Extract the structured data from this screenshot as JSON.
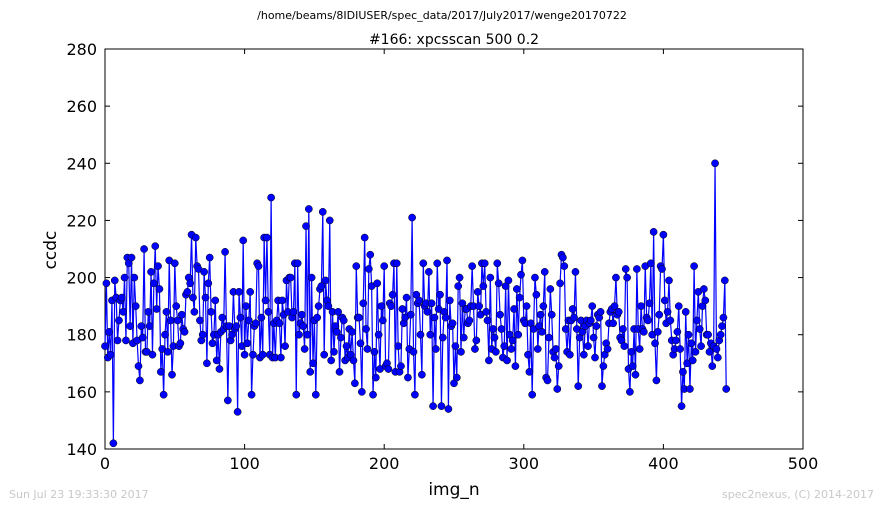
{
  "header": {
    "suptitle": "/home/beams/8IDIUSER/spec_data/2017/July2017/wenge20170722"
  },
  "footer": {
    "timestamp": "Sun Jul 23 19:33:30 2017",
    "credit": "spec2nexus, (C) 2014-2017"
  },
  "chart_data": {
    "type": "line",
    "title": "#166: xpcsscan 500 0.2",
    "xlabel": "img_n",
    "ylabel": "ccdc",
    "xlim": [
      0,
      500
    ],
    "ylim": [
      140,
      280
    ],
    "xticks": [
      "0",
      "100",
      "200",
      "300",
      "400",
      "500"
    ],
    "yticks": [
      "140",
      "160",
      "180",
      "200",
      "220",
      "240",
      "260",
      "280"
    ],
    "grid": false,
    "series": [
      {
        "color": "#0000ff",
        "marker": "circle",
        "values": [
          176,
          198,
          172,
          181,
          173,
          192,
          142,
          199,
          193,
          178,
          185,
          192,
          193,
          188,
          200,
          178,
          207,
          205,
          183,
          207,
          177,
          200,
          190,
          178,
          169,
          164,
          183,
          179,
          210,
          174,
          174,
          188,
          183,
          202,
          173,
          198,
          211,
          189,
          204,
          196,
          167,
          175,
          159,
          180,
          188,
          174,
          206,
          185,
          166,
          176,
          205,
          190,
          185,
          176,
          177,
          187,
          182,
          181,
          194,
          195,
          200,
          198,
          215,
          193,
          188,
          214,
          204,
          203,
          185,
          178,
          180,
          202,
          193,
          170,
          198,
          207,
          188,
          177,
          180,
          192,
          171,
          180,
          168,
          181,
          186,
          182,
          209,
          183,
          157,
          183,
          178,
          180,
          195,
          182,
          183,
          153,
          195,
          186,
          176,
          213,
          173,
          190,
          177,
          185,
          195,
          159,
          173,
          183,
          184,
          205,
          204,
          172,
          186,
          173,
          214,
          192,
          214,
          188,
          173,
          228,
          172,
          184,
          172,
          185,
          192,
          184,
          172,
          192,
          187,
          176,
          199,
          188,
          200,
          200,
          186,
          188,
          205,
          159,
          205,
          180,
          184,
          187,
          183,
          175,
          218,
          180,
          224,
          167,
          200,
          170,
          185,
          159,
          186,
          190,
          196,
          197,
          223,
          173,
          199,
          192,
          190,
          220,
          171,
          188,
          174,
          183,
          181,
          188,
          167,
          179,
          186,
          185,
          171,
          176,
          172,
          182,
          173,
          181,
          171,
          163,
          204,
          186,
          186,
          177,
          160,
          191,
          214,
          182,
          175,
          203,
          208,
          197,
          159,
          174,
          165,
          198,
          180,
          168,
          190,
          185,
          204,
          169,
          170,
          168,
          191,
          190,
          194,
          205,
          167,
          205,
          176,
          167,
          169,
          189,
          184,
          186,
          193,
          165,
          175,
          187,
          221,
          174,
          159,
          194,
          191,
          192,
          180,
          166,
          205,
          190,
          191,
          188,
          202,
          180,
          191,
          155,
          186,
          175,
          205,
          189,
          194,
          155,
          179,
          188,
          186,
          206,
          154,
          192,
          183,
          184,
          163,
          176,
          165,
          197,
          200,
          174,
          191,
          179,
          189,
          189,
          184,
          185,
          190,
          204,
          190,
          175,
          178,
          195,
          190,
          187,
          205,
          197,
          205,
          188,
          185,
          171,
          200,
          175,
          182,
          179,
          174,
          205,
          198,
          187,
          182,
          172,
          176,
          197,
          171,
          199,
          180,
          175,
          178,
          189,
          169,
          196,
          180,
          193,
          201,
          206,
          185,
          184,
          190,
          173,
          167,
          184,
          159,
          182,
          200,
          194,
          175,
          183,
          187,
          181,
          190,
          202,
          165,
          164,
          179,
          196,
          187,
          174,
          172,
          175,
          161,
          169,
          198,
          208,
          207,
          204,
          182,
          174,
          185,
          173,
          185,
          189,
          186,
          202,
          182,
          162,
          179,
          185,
          181,
          173,
          183,
          185,
          176,
          184,
          185,
          190,
          179,
          172,
          183,
          187,
          186,
          188,
          162,
          169,
          173,
          177,
          175,
          184,
          188,
          189,
          184,
          190,
          200,
          187,
          188,
          179,
          178,
          182,
          176,
          203,
          200,
          168,
          160,
          174,
          169,
          182,
          166,
          203,
          182,
          175,
          190,
          182,
          181,
          204,
          186,
          185,
          191,
          205,
          180,
          216,
          177,
          164,
          181,
          187,
          204,
          203,
          215,
          192,
          184,
          188,
          199,
          185,
          178,
          173,
          175,
          178,
          181,
          190,
          175,
          155,
          167,
          161,
          188,
          170,
          180,
          161,
          177,
          171,
          204,
          174,
          185,
          195,
          182,
          176,
          190,
          196,
          192,
          180,
          180,
          174,
          177,
          169,
          176,
          240,
          175,
          172,
          178,
          180,
          183,
          186,
          199,
          161
        ]
      }
    ]
  }
}
